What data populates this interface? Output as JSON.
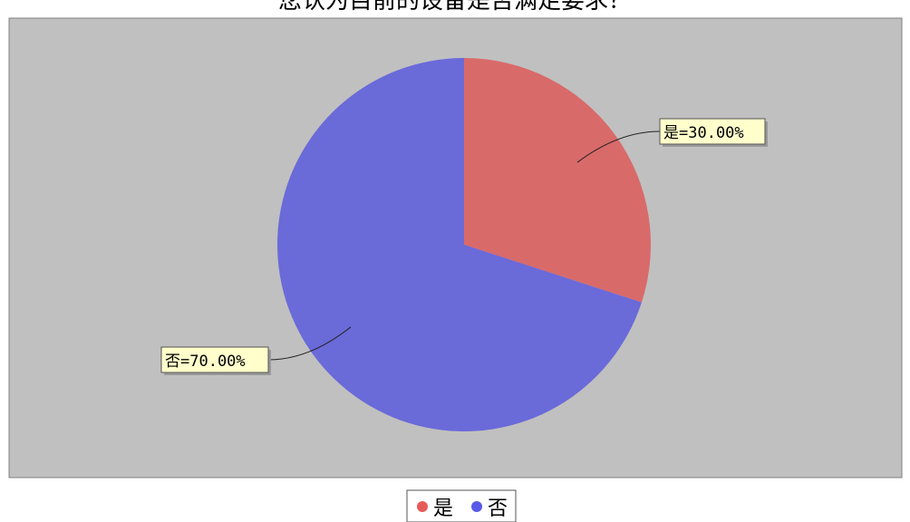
{
  "chart_data": {
    "type": "pie",
    "title": "您认为目前的设备是否满足要求？",
    "slices": [
      {
        "label": "是",
        "value": 30.0,
        "display": "是=30.00%",
        "color": "#d96a6a"
      },
      {
        "label": "否",
        "value": 70.0,
        "display": "否=70.00%",
        "color": "#6a6ad9"
      }
    ],
    "legend": {
      "placement": "bottom",
      "entries": [
        {
          "label": "是",
          "color": "#e85a5a"
        },
        {
          "label": "否",
          "color": "#5a5ae8"
        }
      ]
    },
    "plot_background": "#c0c0c0",
    "label_background": "#ffffcc"
  }
}
